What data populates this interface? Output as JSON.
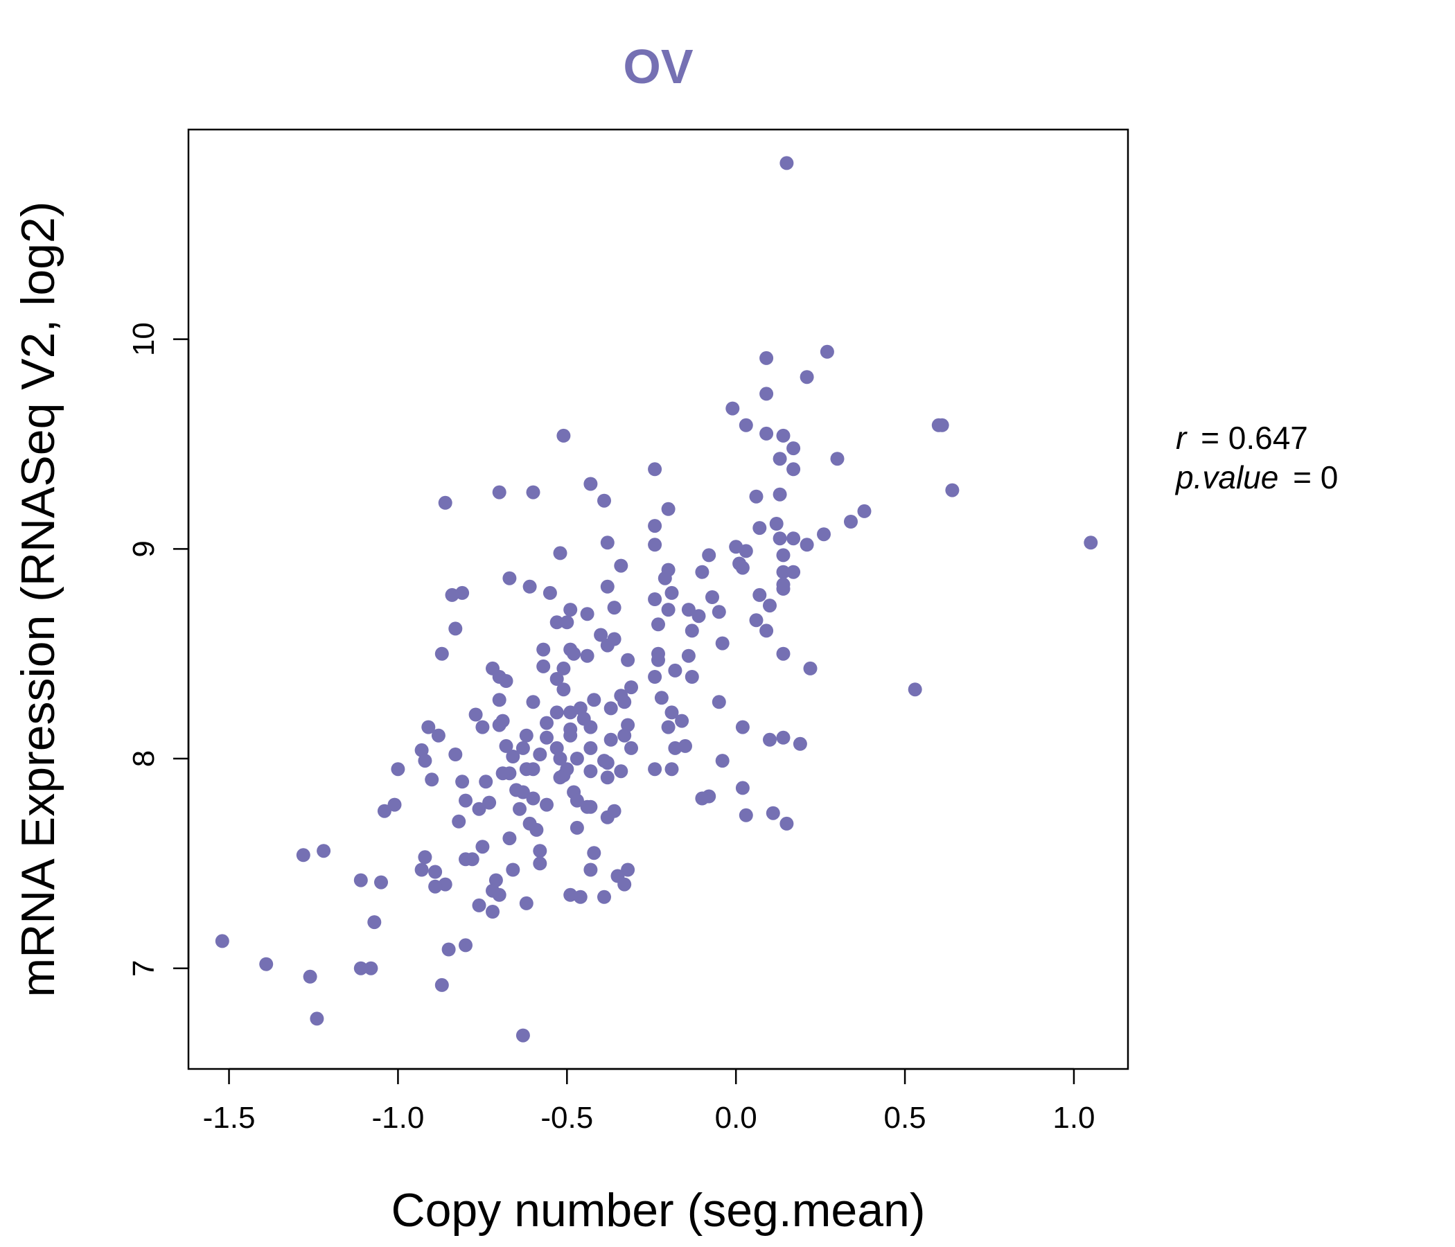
{
  "chart_data": {
    "type": "scatter",
    "title": "OV",
    "xlabel": "Copy number (seg.mean)",
    "ylabel": "mRNA Expression (RNASeq V2, log2)",
    "xlim": [
      -1.62,
      1.16
    ],
    "ylim": [
      6.52,
      11.0
    ],
    "xticks": [
      -1.5,
      -1.0,
      -0.5,
      0.0,
      0.5,
      1.0
    ],
    "xtick_labels": [
      "-1.5",
      "-1.0",
      "-0.5",
      "0.0",
      "0.5",
      "1.0"
    ],
    "yticks": [
      7,
      8,
      9,
      10
    ],
    "ytick_labels": [
      "7",
      "8",
      "9",
      "10"
    ],
    "grid": false,
    "colors": {
      "points": "#7570b3",
      "title": "#7570b3",
      "axis": "#000000"
    },
    "stats": {
      "r_label": "r",
      "r_value": "0.647",
      "p_label": "p.value",
      "p_value": "0"
    },
    "points": [
      [
        0.15,
        10.84
      ],
      [
        0.27,
        9.94
      ],
      [
        0.09,
        9.91
      ],
      [
        0.21,
        9.82
      ],
      [
        0.09,
        9.74
      ],
      [
        -0.01,
        9.67
      ],
      [
        0.03,
        9.59
      ],
      [
        0.6,
        9.59
      ],
      [
        0.61,
        9.59
      ],
      [
        -0.51,
        9.54
      ],
      [
        0.09,
        9.55
      ],
      [
        0.14,
        9.54
      ],
      [
        0.17,
        9.48
      ],
      [
        0.13,
        9.43
      ],
      [
        0.3,
        9.43
      ],
      [
        0.17,
        9.38
      ],
      [
        -0.24,
        9.38
      ],
      [
        -0.43,
        9.31
      ],
      [
        0.64,
        9.28
      ],
      [
        -0.7,
        9.27
      ],
      [
        -0.6,
        9.27
      ],
      [
        0.13,
        9.26
      ],
      [
        0.06,
        9.25
      ],
      [
        -0.39,
        9.23
      ],
      [
        -0.86,
        9.22
      ],
      [
        -0.2,
        9.19
      ],
      [
        0.38,
        9.18
      ],
      [
        0.34,
        9.13
      ],
      [
        -0.24,
        9.11
      ],
      [
        0.12,
        9.12
      ],
      [
        0.07,
        9.1
      ],
      [
        0.26,
        9.07
      ],
      [
        0.13,
        9.05
      ],
      [
        0.17,
        9.05
      ],
      [
        -0.38,
        9.03
      ],
      [
        -0.24,
        9.02
      ],
      [
        0.21,
        9.02
      ],
      [
        1.05,
        9.03
      ],
      [
        0.0,
        9.01
      ],
      [
        0.03,
        8.99
      ],
      [
        -0.52,
        8.98
      ],
      [
        -0.08,
        8.97
      ],
      [
        0.14,
        8.97
      ],
      [
        0.01,
        8.93
      ],
      [
        0.02,
        8.91
      ],
      [
        -0.34,
        8.92
      ],
      [
        -0.2,
        8.9
      ],
      [
        -0.1,
        8.89
      ],
      [
        0.14,
        8.89
      ],
      [
        0.17,
        8.89
      ],
      [
        -0.21,
        8.86
      ],
      [
        -0.67,
        8.86
      ],
      [
        0.14,
        8.83
      ],
      [
        -0.61,
        8.82
      ],
      [
        -0.38,
        8.82
      ],
      [
        0.14,
        8.81
      ],
      [
        -0.55,
        8.79
      ],
      [
        -0.19,
        8.79
      ],
      [
        -0.81,
        8.79
      ],
      [
        -0.84,
        8.78
      ],
      [
        -0.07,
        8.77
      ],
      [
        0.07,
        8.78
      ],
      [
        -0.24,
        8.76
      ],
      [
        0.1,
        8.73
      ],
      [
        -0.36,
        8.72
      ],
      [
        -0.49,
        8.71
      ],
      [
        -0.2,
        8.71
      ],
      [
        -0.14,
        8.71
      ],
      [
        -0.05,
        8.7
      ],
      [
        -0.44,
        8.69
      ],
      [
        -0.11,
        8.68
      ],
      [
        -0.53,
        8.65
      ],
      [
        -0.5,
        8.65
      ],
      [
        0.06,
        8.66
      ],
      [
        -0.23,
        8.64
      ],
      [
        -0.83,
        8.62
      ],
      [
        0.09,
        8.61
      ],
      [
        -0.13,
        8.61
      ],
      [
        -0.4,
        8.59
      ],
      [
        -0.36,
        8.57
      ],
      [
        -0.04,
        8.55
      ],
      [
        -0.38,
        8.54
      ],
      [
        -0.57,
        8.52
      ],
      [
        -0.49,
        8.52
      ],
      [
        -0.48,
        8.5
      ],
      [
        -0.23,
        8.5
      ],
      [
        -0.44,
        8.49
      ],
      [
        -0.14,
        8.49
      ],
      [
        -0.87,
        8.5
      ],
      [
        0.14,
        8.5
      ],
      [
        -0.32,
        8.47
      ],
      [
        -0.23,
        8.47
      ],
      [
        -0.57,
        8.44
      ],
      [
        -0.51,
        8.43
      ],
      [
        -0.72,
        8.43
      ],
      [
        0.22,
        8.43
      ],
      [
        -0.18,
        8.42
      ],
      [
        -0.7,
        8.39
      ],
      [
        -0.68,
        8.37
      ],
      [
        -0.24,
        8.39
      ],
      [
        -0.13,
        8.39
      ],
      [
        -0.53,
        8.38
      ],
      [
        -0.31,
        8.34
      ],
      [
        0.53,
        8.33
      ],
      [
        -0.34,
        8.3
      ],
      [
        -0.51,
        8.33
      ],
      [
        -0.22,
        8.29
      ],
      [
        -0.7,
        8.28
      ],
      [
        -0.42,
        8.28
      ],
      [
        -0.05,
        8.27
      ],
      [
        -0.6,
        8.27
      ],
      [
        -0.33,
        8.27
      ],
      [
        -0.46,
        8.24
      ],
      [
        -0.37,
        8.24
      ],
      [
        -0.53,
        8.22
      ],
      [
        -0.49,
        8.22
      ],
      [
        -0.19,
        8.22
      ],
      [
        -0.77,
        8.21
      ],
      [
        -0.45,
        8.19
      ],
      [
        -0.16,
        8.18
      ],
      [
        -0.69,
        8.18
      ],
      [
        -0.56,
        8.17
      ],
      [
        -0.7,
        8.16
      ],
      [
        -0.75,
        8.15
      ],
      [
        -0.91,
        8.15
      ],
      [
        -0.2,
        8.15
      ],
      [
        -0.32,
        8.16
      ],
      [
        0.02,
        8.15
      ],
      [
        -0.49,
        8.14
      ],
      [
        -0.43,
        8.15
      ],
      [
        -0.49,
        8.11
      ],
      [
        -0.33,
        8.11
      ],
      [
        -0.88,
        8.11
      ],
      [
        -0.56,
        8.1
      ],
      [
        0.14,
        8.1
      ],
      [
        0.1,
        8.09
      ],
      [
        0.19,
        8.07
      ],
      [
        -0.37,
        8.09
      ],
      [
        -0.62,
        8.11
      ],
      [
        -0.68,
        8.06
      ],
      [
        -0.15,
        8.06
      ],
      [
        -0.18,
        8.05
      ],
      [
        -0.31,
        8.05
      ],
      [
        -0.43,
        8.05
      ],
      [
        -0.63,
        8.05
      ],
      [
        -0.53,
        8.05
      ],
      [
        -0.93,
        8.04
      ],
      [
        -0.58,
        8.02
      ],
      [
        -0.83,
        8.02
      ],
      [
        -0.66,
        8.01
      ],
      [
        -0.47,
        8.0
      ],
      [
        -0.52,
        8.0
      ],
      [
        -0.39,
        7.99
      ],
      [
        -0.04,
        7.99
      ],
      [
        -0.92,
        7.99
      ],
      [
        -0.38,
        7.98
      ],
      [
        -0.62,
        7.95
      ],
      [
        -0.6,
        7.95
      ],
      [
        -0.5,
        7.95
      ],
      [
        -1.0,
        7.95
      ],
      [
        -0.43,
        7.94
      ],
      [
        -0.34,
        7.94
      ],
      [
        -0.67,
        7.93
      ],
      [
        -0.69,
        7.93
      ],
      [
        -0.51,
        7.92
      ],
      [
        -0.24,
        7.95
      ],
      [
        -0.19,
        7.95
      ],
      [
        -0.38,
        7.91
      ],
      [
        -0.81,
        7.89
      ],
      [
        -0.74,
        7.89
      ],
      [
        -0.9,
        7.9
      ],
      [
        -0.52,
        7.91
      ],
      [
        0.02,
        7.86
      ],
      [
        -0.65,
        7.85
      ],
      [
        -0.63,
        7.84
      ],
      [
        -0.48,
        7.84
      ],
      [
        -0.08,
        7.82
      ],
      [
        -0.1,
        7.81
      ],
      [
        -0.6,
        7.81
      ],
      [
        -0.8,
        7.8
      ],
      [
        -0.73,
        7.79
      ],
      [
        -0.47,
        7.8
      ],
      [
        -0.56,
        7.78
      ],
      [
        -0.44,
        7.77
      ],
      [
        -1.01,
        7.78
      ],
      [
        -0.76,
        7.76
      ],
      [
        -1.04,
        7.75
      ],
      [
        -0.64,
        7.76
      ],
      [
        -0.43,
        7.77
      ],
      [
        0.11,
        7.74
      ],
      [
        0.03,
        7.73
      ],
      [
        -0.36,
        7.75
      ],
      [
        -0.38,
        7.72
      ],
      [
        0.15,
        7.69
      ],
      [
        -0.82,
        7.7
      ],
      [
        -0.61,
        7.69
      ],
      [
        -0.47,
        7.67
      ],
      [
        -0.59,
        7.66
      ],
      [
        -0.67,
        7.62
      ],
      [
        -0.58,
        7.56
      ],
      [
        -0.42,
        7.55
      ],
      [
        -0.75,
        7.58
      ],
      [
        -1.22,
        7.56
      ],
      [
        -1.28,
        7.54
      ],
      [
        -0.92,
        7.53
      ],
      [
        -0.78,
        7.52
      ],
      [
        -0.8,
        7.52
      ],
      [
        -0.58,
        7.5
      ],
      [
        -0.66,
        7.47
      ],
      [
        -0.93,
        7.47
      ],
      [
        -0.89,
        7.46
      ],
      [
        -0.32,
        7.47
      ],
      [
        -0.43,
        7.47
      ],
      [
        -0.35,
        7.44
      ],
      [
        -0.71,
        7.42
      ],
      [
        -1.11,
        7.42
      ],
      [
        -1.05,
        7.41
      ],
      [
        -0.86,
        7.4
      ],
      [
        -0.33,
        7.4
      ],
      [
        -0.89,
        7.39
      ],
      [
        -0.72,
        7.37
      ],
      [
        -0.7,
        7.35
      ],
      [
        -0.49,
        7.35
      ],
      [
        -0.46,
        7.34
      ],
      [
        -0.39,
        7.34
      ],
      [
        -0.62,
        7.31
      ],
      [
        -0.76,
        7.3
      ],
      [
        -0.72,
        7.27
      ],
      [
        -1.07,
        7.22
      ],
      [
        -1.52,
        7.13
      ],
      [
        -0.8,
        7.11
      ],
      [
        -0.85,
        7.09
      ],
      [
        -1.39,
        7.02
      ],
      [
        -1.11,
        7.0
      ],
      [
        -1.08,
        7.0
      ],
      [
        -1.26,
        6.96
      ],
      [
        -0.87,
        6.92
      ],
      [
        -1.24,
        6.76
      ],
      [
        -0.63,
        6.68
      ]
    ]
  }
}
